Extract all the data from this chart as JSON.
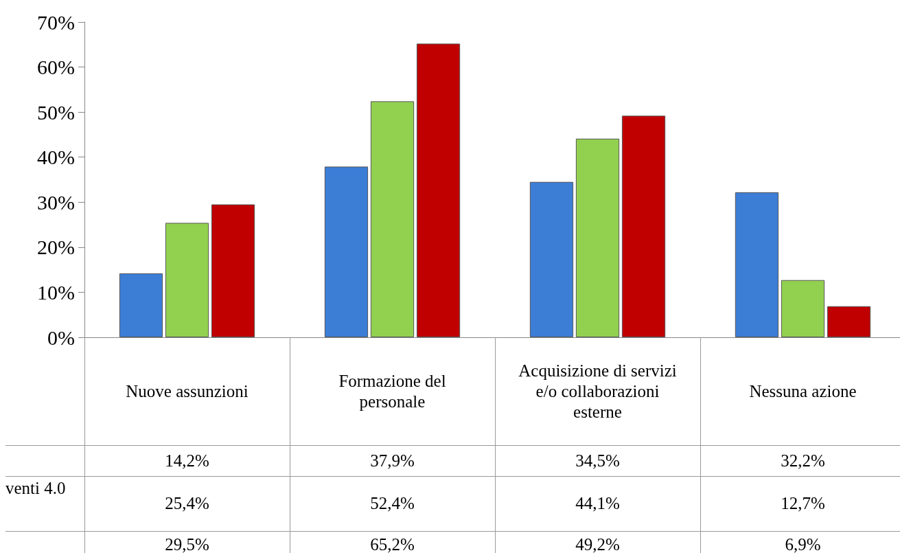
{
  "chart_data": {
    "type": "bar",
    "categories": [
      "Nuove assunzioni",
      "Formazione del personale",
      "Acquisizione di servizi e/o collaborazioni esterne",
      "Nessuna azione"
    ],
    "series": [
      {
        "color": "#3c7dd6",
        "values": [
          14.2,
          37.9,
          34.5,
          32.2
        ],
        "value_labels": [
          "14,2%",
          "37,9%",
          "34,5%",
          "32,2%"
        ]
      },
      {
        "name": "venti 4.0",
        "color": "#92d050",
        "values": [
          25.4,
          52.4,
          44.1,
          12.7
        ],
        "value_labels": [
          "25,4%",
          "52,4%",
          "44,1%",
          "12,7%"
        ]
      },
      {
        "color": "#c00000",
        "values": [
          29.5,
          65.2,
          49.2,
          6.9
        ],
        "value_labels": [
          "29,5%",
          "65,2%",
          "49,2%",
          "6,9%"
        ]
      }
    ],
    "ylim": [
      0,
      70
    ],
    "yticks": [
      {
        "value": 0,
        "label": "0%"
      },
      {
        "value": 10,
        "label": "10%"
      },
      {
        "value": 20,
        "label": "20%"
      },
      {
        "value": 30,
        "label": "30%"
      },
      {
        "value": 40,
        "label": "40%"
      },
      {
        "value": 50,
        "label": "50%"
      },
      {
        "value": 60,
        "label": "60%"
      },
      {
        "value": 70,
        "label": "70%"
      }
    ],
    "grid": false,
    "legend": false
  }
}
